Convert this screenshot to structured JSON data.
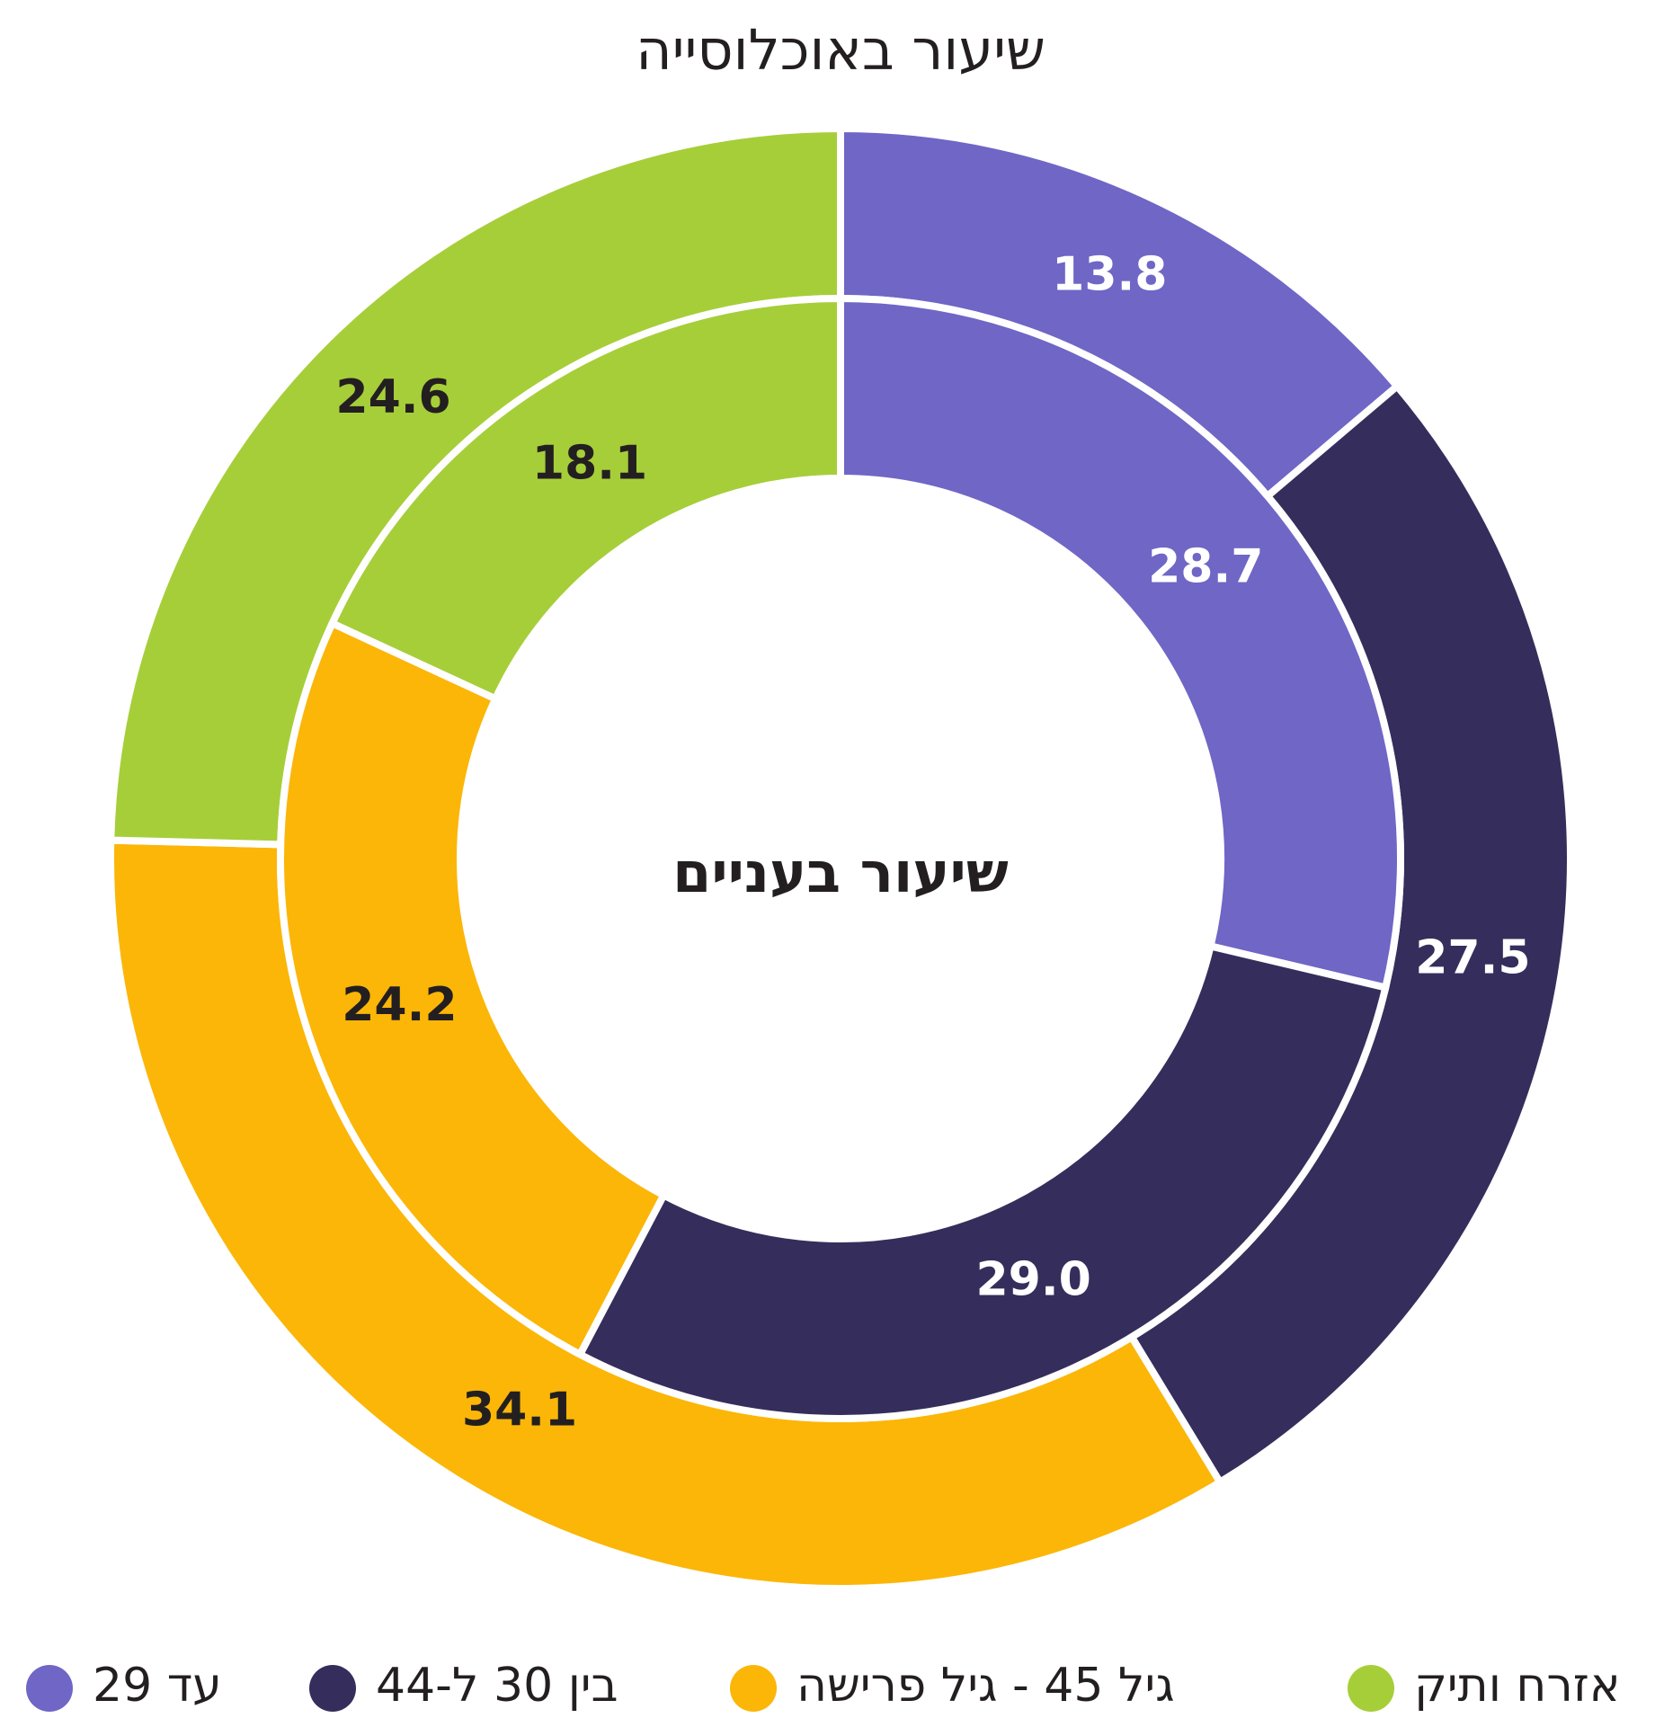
{
  "chart_data": {
    "type": "donut",
    "categories": [
      "עד 29",
      "בין 30 ל-44",
      "גיל 45 - גיל פרישה",
      "אזרח ותיק"
    ],
    "colors": [
      "#6f66c6",
      "#352e5c",
      "#fbb608",
      "#a6ce39"
    ],
    "series": [
      {
        "name": "שיעור באוכלוסייה",
        "values": [
          13.8,
          27.5,
          34.1,
          24.6
        ],
        "value_labels": [
          "13.8",
          "27.5",
          "34.1",
          "24.6"
        ]
      },
      {
        "name": "שיעור בעניים",
        "values": [
          28.7,
          29.0,
          24.2,
          18.1
        ],
        "value_labels": [
          "28.7",
          "29.0",
          "24.2",
          "18.1"
        ]
      }
    ]
  }
}
